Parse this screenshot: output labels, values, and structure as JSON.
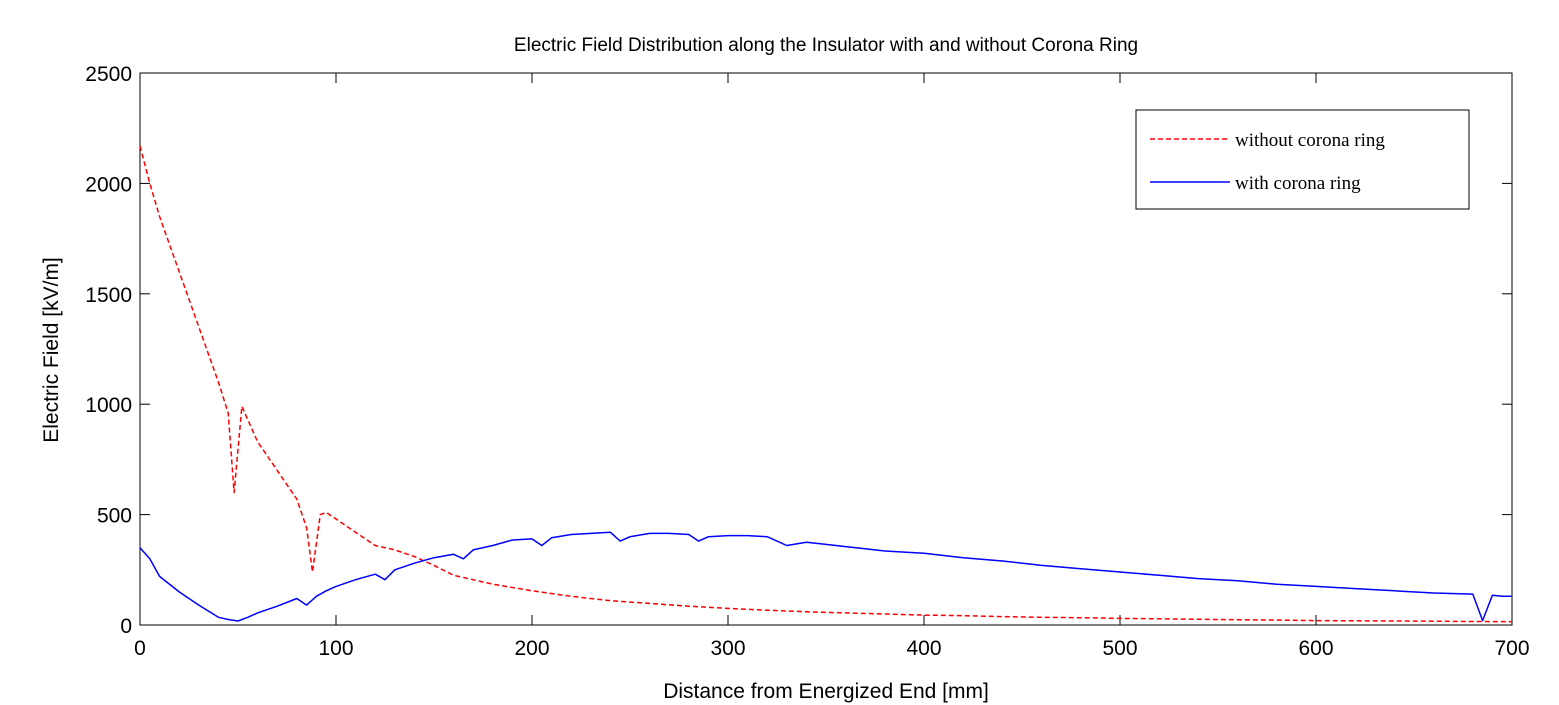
{
  "chart_data": {
    "type": "line",
    "title": "Electric Field Distribution along the Insulator with and without Corona Ring",
    "xlabel": "Distance from Energized End [mm]",
    "ylabel": "Electric Field [kV/m]",
    "xlim": [
      0,
      700
    ],
    "ylim": [
      0,
      2500
    ],
    "xticks": [
      0,
      100,
      200,
      300,
      400,
      500,
      600,
      700
    ],
    "yticks": [
      0,
      500,
      1000,
      1500,
      2000,
      2500
    ],
    "grid": false,
    "legend_position": "top-right",
    "series": [
      {
        "name": "without corona ring",
        "color": "#ff0000",
        "style": "dashed",
        "x": [
          0,
          5,
          10,
          20,
          30,
          40,
          45,
          48,
          52,
          55,
          60,
          70,
          80,
          85,
          88,
          92,
          95,
          100,
          110,
          120,
          130,
          140,
          150,
          160,
          170,
          180,
          200,
          220,
          240,
          260,
          280,
          300,
          320,
          340,
          360,
          380,
          400,
          420,
          440,
          460,
          480,
          500,
          520,
          540,
          560,
          580,
          600,
          620,
          640,
          660,
          680,
          700
        ],
        "y": [
          2170,
          2000,
          1850,
          1600,
          1350,
          1100,
          960,
          600,
          990,
          930,
          830,
          700,
          570,
          440,
          240,
          500,
          510,
          480,
          420,
          360,
          340,
          310,
          270,
          225,
          205,
          185,
          155,
          130,
          110,
          98,
          85,
          75,
          67,
          60,
          55,
          50,
          45,
          42,
          38,
          35,
          33,
          30,
          28,
          26,
          24,
          22,
          20,
          19,
          18,
          17,
          16,
          15
        ]
      },
      {
        "name": "with corona ring",
        "color": "#0000ff",
        "style": "solid",
        "x": [
          0,
          5,
          10,
          20,
          30,
          40,
          45,
          50,
          55,
          60,
          70,
          80,
          85,
          90,
          95,
          100,
          110,
          120,
          125,
          130,
          140,
          150,
          160,
          165,
          170,
          180,
          190,
          200,
          205,
          210,
          220,
          230,
          240,
          245,
          250,
          260,
          270,
          280,
          285,
          290,
          300,
          310,
          320,
          330,
          340,
          350,
          360,
          370,
          380,
          400,
          420,
          440,
          460,
          480,
          500,
          520,
          540,
          560,
          580,
          600,
          620,
          640,
          660,
          680,
          685,
          690,
          695,
          700
        ],
        "y": [
          350,
          300,
          220,
          150,
          90,
          35,
          25,
          18,
          35,
          55,
          85,
          120,
          90,
          130,
          155,
          175,
          205,
          230,
          205,
          250,
          280,
          305,
          320,
          300,
          340,
          360,
          385,
          390,
          360,
          395,
          410,
          415,
          420,
          380,
          400,
          415,
          415,
          410,
          380,
          400,
          405,
          405,
          400,
          360,
          375,
          365,
          355,
          345,
          335,
          325,
          305,
          290,
          270,
          255,
          240,
          225,
          210,
          200,
          185,
          175,
          165,
          155,
          145,
          140,
          20,
          135,
          130,
          130
        ]
      }
    ]
  }
}
